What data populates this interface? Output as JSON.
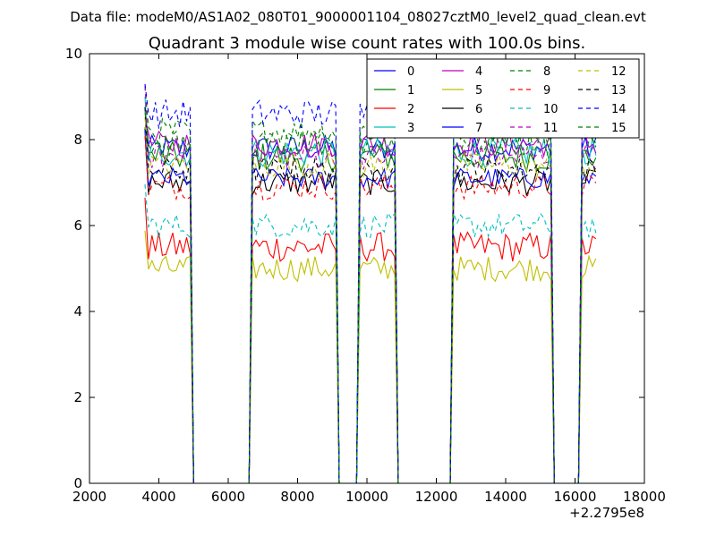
{
  "figure": {
    "suptitle": "Data file: modeM0/AS1A02_080T01_9000001104_08027cztM0_level2_quad_clean.evt",
    "offset_label": "+2.2795e8"
  },
  "chart_data": {
    "type": "line",
    "title": "Quadrant 3 module wise count rates with 100.0s bins.",
    "xlabel": "",
    "ylabel": "",
    "xlim": [
      2000,
      18000
    ],
    "ylim": [
      0,
      10
    ],
    "x_offset": 227950000,
    "xticks": [
      2000,
      4000,
      6000,
      8000,
      10000,
      12000,
      14000,
      16000,
      18000
    ],
    "xtick_labels": [
      "2000",
      "4000",
      "6000",
      "8000",
      "10000",
      "12000",
      "14000",
      "16000",
      "18000"
    ],
    "yticks": [
      0,
      2,
      4,
      6,
      8,
      10
    ],
    "ytick_labels": [
      "0",
      "2",
      "4",
      "6",
      "8",
      "10"
    ],
    "grid": false,
    "legend": {
      "placement": "top-right",
      "columns": 4
    },
    "segments": [
      {
        "start": 3600,
        "end": 4900
      },
      {
        "start": 6700,
        "end": 9100
      },
      {
        "start": 9800,
        "end": 10800
      },
      {
        "start": 12500,
        "end": 15300
      },
      {
        "start": 16200,
        "end": 16600
      }
    ],
    "series": [
      {
        "name": "0",
        "color": "#0000ff",
        "style": "solid",
        "level": 7.8,
        "noise": 0.3
      },
      {
        "name": "1",
        "color": "#008000",
        "style": "solid",
        "level": 7.6,
        "noise": 0.35
      },
      {
        "name": "2",
        "color": "#ff0000",
        "style": "solid",
        "level": 5.5,
        "noise": 0.35
      },
      {
        "name": "3",
        "color": "#00bfbf",
        "style": "solid",
        "level": 7.7,
        "noise": 0.35
      },
      {
        "name": "4",
        "color": "#bf00bf",
        "style": "solid",
        "level": 7.9,
        "noise": 0.3
      },
      {
        "name": "5",
        "color": "#bfbf00",
        "style": "solid",
        "level": 5.0,
        "noise": 0.3
      },
      {
        "name": "6",
        "color": "#000000",
        "style": "solid",
        "level": 7.0,
        "noise": 0.3
      },
      {
        "name": "7",
        "color": "#0000ff",
        "style": "solid",
        "level": 7.1,
        "noise": 0.25
      },
      {
        "name": "8",
        "color": "#008000",
        "style": "dashed",
        "level": 8.2,
        "noise": 0.3
      },
      {
        "name": "9",
        "color": "#ff0000",
        "style": "dashed",
        "level": 6.9,
        "noise": 0.3
      },
      {
        "name": "10",
        "color": "#00bfbf",
        "style": "dashed",
        "level": 6.0,
        "noise": 0.3
      },
      {
        "name": "11",
        "color": "#bf00bf",
        "style": "dashed",
        "level": 7.6,
        "noise": 0.3
      },
      {
        "name": "12",
        "color": "#bfbf00",
        "style": "dashed",
        "level": 7.4,
        "noise": 0.3
      },
      {
        "name": "13",
        "color": "#000000",
        "style": "dashed",
        "level": 7.3,
        "noise": 0.3
      },
      {
        "name": "14",
        "color": "#0000ff",
        "style": "dashed",
        "level": 8.6,
        "noise": 0.35
      },
      {
        "name": "15",
        "color": "#008000",
        "style": "dashed",
        "level": 7.9,
        "noise": 0.3
      }
    ]
  }
}
